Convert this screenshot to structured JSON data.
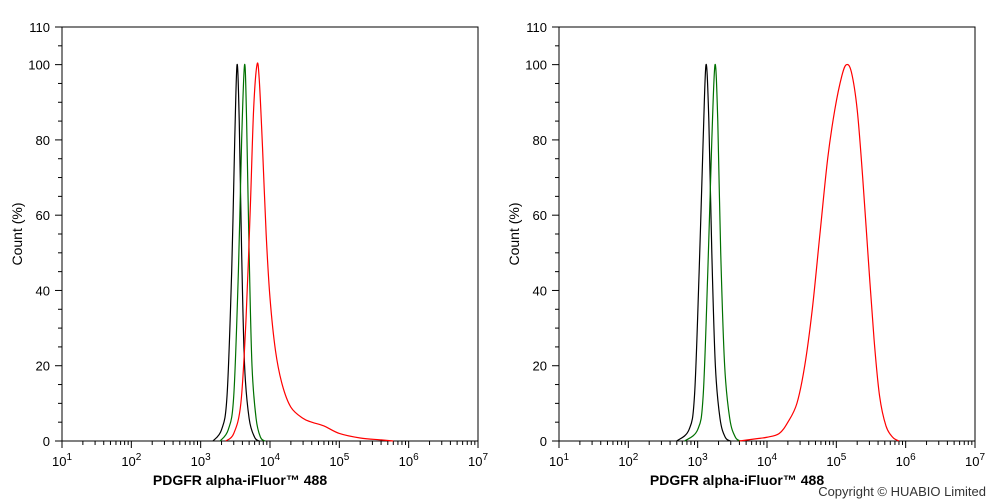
{
  "chart_data": [
    {
      "type": "line",
      "title": "",
      "xlabel": "PDGFR alpha-iFluor™ 488",
      "ylabel": "Count  (%)",
      "x_scale": "log",
      "xlim": [
        10,
        10000000
      ],
      "ylim": [
        0,
        110
      ],
      "x_ticks": [
        {
          "base": "10",
          "exp": "1"
        },
        {
          "base": "10",
          "exp": "2"
        },
        {
          "base": "10",
          "exp": "3"
        },
        {
          "base": "10",
          "exp": "4"
        },
        {
          "base": "10",
          "exp": "5"
        },
        {
          "base": "10",
          "exp": "6"
        },
        {
          "base": "10",
          "exp": "7"
        }
      ],
      "y_ticks": [
        "0",
        "20",
        "40",
        "60",
        "80",
        "100",
        "110"
      ],
      "grid": false,
      "legend": "none",
      "series": [
        {
          "color": "#000000",
          "points": [
            [
              1500,
              0
            ],
            [
              2000,
              3
            ],
            [
              2400,
              12
            ],
            [
              2800,
              45
            ],
            [
              3100,
              80
            ],
            [
              3350,
              100
            ],
            [
              3600,
              85
            ],
            [
              3900,
              50
            ],
            [
              4300,
              20
            ],
            [
              5000,
              6
            ],
            [
              6000,
              1
            ],
            [
              7000,
              0
            ]
          ]
        },
        {
          "color": "#007000",
          "points": [
            [
              1900,
              0
            ],
            [
              2500,
              3
            ],
            [
              3000,
              12
            ],
            [
              3500,
              45
            ],
            [
              3900,
              80
            ],
            [
              4300,
              100
            ],
            [
              4600,
              85
            ],
            [
              5000,
              50
            ],
            [
              5500,
              20
            ],
            [
              6300,
              6
            ],
            [
              7300,
              1
            ],
            [
              8500,
              0
            ]
          ]
        },
        {
          "color": "#ff0000",
          "points": [
            [
              2300,
              0
            ],
            [
              3000,
              2
            ],
            [
              3800,
              10
            ],
            [
              4500,
              32
            ],
            [
              5200,
              62
            ],
            [
              5800,
              88
            ],
            [
              6500,
              100
            ],
            [
              7000,
              96
            ],
            [
              7800,
              78
            ],
            [
              8800,
              55
            ],
            [
              10000,
              38
            ],
            [
              12000,
              24
            ],
            [
              15000,
              15
            ],
            [
              20000,
              9
            ],
            [
              30000,
              6
            ],
            [
              40000,
              5
            ],
            [
              60000,
              4
            ],
            [
              100000,
              2
            ],
            [
              200000,
              0.8
            ],
            [
              400000,
              0.3
            ],
            [
              600000,
              0
            ]
          ]
        }
      ]
    },
    {
      "type": "line",
      "title": "",
      "xlabel": "PDGFR alpha-iFluor™ 488",
      "ylabel": "Count  (%)",
      "x_scale": "log",
      "xlim": [
        10,
        10000000
      ],
      "ylim": [
        0,
        110
      ],
      "x_ticks": [
        {
          "base": "10",
          "exp": "1"
        },
        {
          "base": "10",
          "exp": "2"
        },
        {
          "base": "10",
          "exp": "3"
        },
        {
          "base": "10",
          "exp": "4"
        },
        {
          "base": "10",
          "exp": "5"
        },
        {
          "base": "10",
          "exp": "6"
        },
        {
          "base": "10",
          "exp": "7"
        }
      ],
      "y_ticks": [
        "0",
        "20",
        "40",
        "60",
        "80",
        "100",
        "110"
      ],
      "grid": false,
      "legend": "none",
      "series": [
        {
          "color": "#000000",
          "points": [
            [
              500,
              0
            ],
            [
              750,
              3
            ],
            [
              900,
              12
            ],
            [
              1050,
              45
            ],
            [
              1200,
              80
            ],
            [
              1320,
              100
            ],
            [
              1450,
              85
            ],
            [
              1600,
              50
            ],
            [
              1800,
              20
            ],
            [
              2100,
              6
            ],
            [
              2500,
              1
            ],
            [
              3000,
              0
            ]
          ]
        },
        {
          "color": "#007000",
          "points": [
            [
              650,
              0
            ],
            [
              1000,
              3
            ],
            [
              1200,
              12
            ],
            [
              1400,
              45
            ],
            [
              1600,
              80
            ],
            [
              1780,
              100
            ],
            [
              1950,
              85
            ],
            [
              2150,
              50
            ],
            [
              2450,
              20
            ],
            [
              2900,
              6
            ],
            [
              3500,
              1
            ],
            [
              4200,
              0
            ]
          ]
        },
        {
          "color": "#ff0000",
          "points": [
            [
              4000,
              0
            ],
            [
              7000,
              0.6
            ],
            [
              10000,
              1
            ],
            [
              15000,
              2
            ],
            [
              20000,
              5
            ],
            [
              27000,
              10
            ],
            [
              35000,
              20
            ],
            [
              45000,
              35
            ],
            [
              58000,
              55
            ],
            [
              75000,
              75
            ],
            [
              95000,
              88
            ],
            [
              120000,
              97
            ],
            [
              140000,
              100
            ],
            [
              165000,
              98
            ],
            [
              200000,
              88
            ],
            [
              240000,
              70
            ],
            [
              290000,
              48
            ],
            [
              350000,
              27
            ],
            [
              420000,
              12
            ],
            [
              520000,
              4
            ],
            [
              650000,
              1
            ],
            [
              800000,
              0
            ]
          ]
        }
      ]
    }
  ],
  "copyright": "Copyright © HUABIO Limited"
}
